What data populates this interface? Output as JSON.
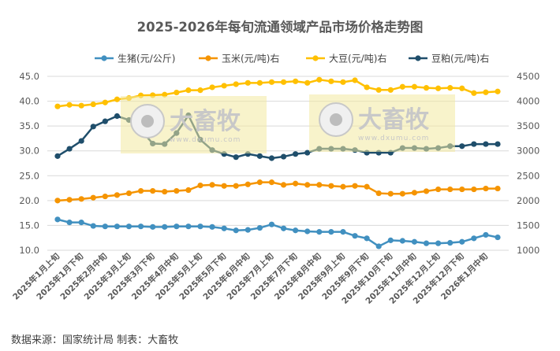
{
  "chart_data": {
    "type": "line",
    "title": "2025-2026年每旬流通领域产品市场价格走势图",
    "x_tick_labels": [
      "2025年1月上旬",
      "2025年1月下旬",
      "2025年2月中旬",
      "2025年3月上旬",
      "2025年3月下旬",
      "2025年4月中旬",
      "2025年5月上旬",
      "2025年5月下旬",
      "2025年6月中旬",
      "2025年7月上旬",
      "2025年7月下旬",
      "2025年8月中旬",
      "2025年9月上旬",
      "2025年9月下旬",
      "2025年10月下旬",
      "2025年11月中旬",
      "2025年12月上旬",
      "2025年12月下旬",
      "2026年1月中旬"
    ],
    "y_left": {
      "min": 10,
      "max": 45,
      "ticks": [
        "10.0",
        "15.0",
        "20.0",
        "25.0",
        "30.0",
        "35.0",
        "40.0",
        "45.0"
      ]
    },
    "y_right": {
      "min": 1000,
      "max": 4500,
      "ticks": [
        "1000",
        "1500",
        "2000",
        "2500",
        "3000",
        "3500",
        "4000",
        "4500"
      ]
    },
    "grid": true,
    "legend_position": "top",
    "series": [
      {
        "name": "生猪(元/公斤)",
        "axis": "left",
        "color": "#4190c0",
        "values": [
          16.2,
          15.6,
          15.6,
          14.9,
          14.8,
          14.8,
          14.8,
          14.8,
          14.7,
          14.7,
          14.8,
          14.8,
          14.8,
          14.7,
          14.4,
          14.0,
          14.1,
          14.5,
          15.2,
          14.4,
          14.0,
          13.8,
          13.7,
          13.7,
          13.7,
          12.9,
          12.4,
          10.8,
          12.0,
          11.9,
          11.7,
          11.4,
          11.4,
          11.5,
          11.7,
          12.4,
          13.1,
          12.6
        ]
      },
      {
        "name": "玉米(元/吨)右",
        "axis": "right",
        "color": "#f59400",
        "values": [
          2000,
          2016,
          2032,
          2058,
          2084,
          2111,
          2147,
          2195,
          2195,
          2179,
          2195,
          2211,
          2305,
          2316,
          2295,
          2295,
          2326,
          2368,
          2368,
          2316,
          2342,
          2316,
          2316,
          2295,
          2279,
          2295,
          2279,
          2147,
          2137,
          2137,
          2158,
          2189,
          2226,
          2226,
          2226,
          2226,
          2242,
          2242
        ]
      },
      {
        "name": "大豆(元/吨)右",
        "axis": "right",
        "color": "#ffc000",
        "values": [
          3895,
          3926,
          3911,
          3937,
          3974,
          4037,
          4063,
          4116,
          4121,
          4132,
          4174,
          4221,
          4221,
          4279,
          4311,
          4342,
          4368,
          4368,
          4384,
          4384,
          4400,
          4368,
          4432,
          4400,
          4384,
          4421,
          4279,
          4226,
          4226,
          4290,
          4290,
          4268,
          4258,
          4268,
          4258,
          4163,
          4179,
          4195
        ]
      },
      {
        "name": "豆粕(元/吨)右",
        "axis": "right",
        "color": "#1f4e6b",
        "values": [
          2895,
          3042,
          3200,
          3489,
          3595,
          3700,
          3621,
          3421,
          3147,
          3137,
          3358,
          3716,
          3226,
          3016,
          2937,
          2874,
          2937,
          2895,
          2853,
          2884,
          2937,
          2963,
          3042,
          3042,
          3042,
          3016,
          2963,
          2963,
          2963,
          3058,
          3058,
          3042,
          3058,
          3095,
          3095,
          3137,
          3137,
          3137
        ]
      }
    ]
  },
  "footer": "数据来源：国家统计局 制表：大畜牧",
  "watermark": {
    "brand": "大畜牧",
    "url": "www.dxumu.com"
  }
}
